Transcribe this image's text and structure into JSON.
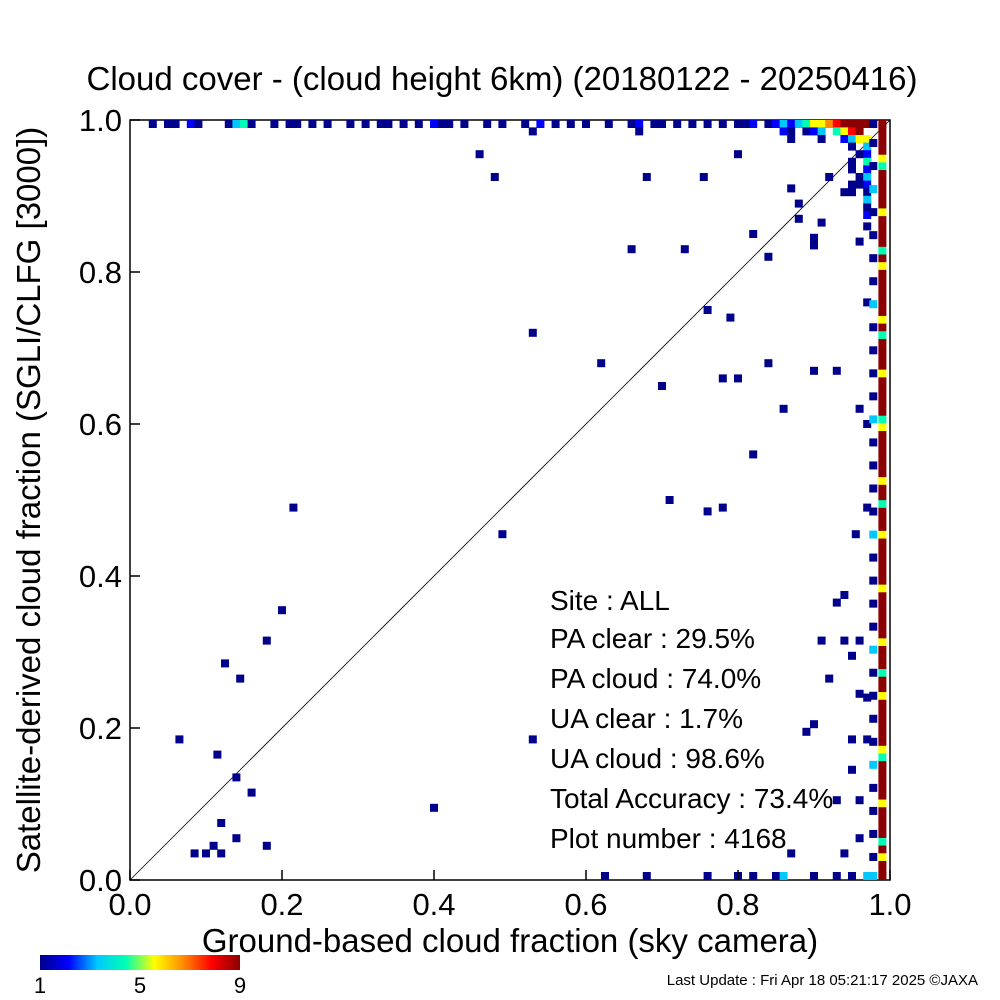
{
  "chart_data": {
    "type": "heatmap",
    "title": "Cloud cover - (cloud height 6km)  (20180122 - 20250416)",
    "xlabel": "Ground-based cloud fraction (sky camera)",
    "ylabel": "Satellite-derived cloud fraction (SGLI/CLFG [3000])",
    "xlim": [
      0,
      1
    ],
    "ylim": [
      0,
      1
    ],
    "x_ticks": [
      "0.0",
      "0.2",
      "0.4",
      "0.6",
      "0.8",
      "1.0"
    ],
    "y_ticks": [
      "0.0",
      "0.2",
      "0.4",
      "0.6",
      "0.8",
      "1.0"
    ],
    "grid": false,
    "reference_line": "1:1",
    "colorbar": {
      "min": 1,
      "max": 9,
      "ticks": [
        "1",
        "5",
        "9"
      ],
      "colors": [
        "#00008b",
        "#0000ff",
        "#00c8ff",
        "#00ffb4",
        "#ffff00",
        "#ff8c00",
        "#ff0000",
        "#8b0000"
      ]
    },
    "stats": {
      "site": "Site : ALL",
      "pa_clear": "PA clear :  29.5%",
      "pa_cloud": "PA cloud :  74.0%",
      "ua_clear": "UA clear :   1.7%",
      "ua_cloud": "UA cloud :  98.6%",
      "total_accuracy": "Total Accuracy :  73.4%",
      "plot_number": "Plot number :     4168"
    },
    "points": [
      [
        0.065,
        0.185,
        1
      ],
      [
        0.085,
        0.035,
        1
      ],
      [
        0.1,
        0.035,
        1
      ],
      [
        0.11,
        0.045,
        1
      ],
      [
        0.12,
        0.035,
        1
      ],
      [
        0.12,
        0.075,
        1
      ],
      [
        0.14,
        0.055,
        1
      ],
      [
        0.115,
        0.165,
        1
      ],
      [
        0.14,
        0.135,
        1
      ],
      [
        0.16,
        0.115,
        1
      ],
      [
        0.18,
        0.045,
        1
      ],
      [
        0.125,
        0.285,
        1
      ],
      [
        0.145,
        0.265,
        1
      ],
      [
        0.18,
        0.315,
        1
      ],
      [
        0.2,
        0.355,
        1
      ],
      [
        0.215,
        0.49,
        1
      ],
      [
        0.4,
        0.095,
        1
      ],
      [
        0.46,
        0.955,
        1
      ],
      [
        0.48,
        0.925,
        1
      ],
      [
        0.49,
        0.455,
        1
      ],
      [
        0.53,
        0.185,
        1
      ],
      [
        0.53,
        0.72,
        1
      ],
      [
        0.62,
        0.68,
        1
      ],
      [
        0.66,
        0.83,
        1
      ],
      [
        0.68,
        0.925,
        1
      ],
      [
        0.7,
        0.65,
        1
      ],
      [
        0.71,
        0.5,
        1
      ],
      [
        0.73,
        0.83,
        1
      ],
      [
        0.755,
        0.925,
        1
      ],
      [
        0.76,
        0.75,
        1
      ],
      [
        0.76,
        0.485,
        1
      ],
      [
        0.78,
        0.49,
        1
      ],
      [
        0.78,
        0.66,
        1
      ],
      [
        0.79,
        0.74,
        1
      ],
      [
        0.8,
        0.955,
        1
      ],
      [
        0.8,
        0.66,
        1
      ],
      [
        0.82,
        0.56,
        1
      ],
      [
        0.82,
        0.85,
        1
      ],
      [
        0.84,
        0.82,
        1
      ],
      [
        0.84,
        0.68,
        1
      ],
      [
        0.86,
        0.62,
        1
      ],
      [
        0.87,
        0.91,
        1
      ],
      [
        0.88,
        0.89,
        1
      ],
      [
        0.88,
        0.87,
        1
      ],
      [
        0.89,
        0.195,
        1
      ],
      [
        0.9,
        0.205,
        1
      ],
      [
        0.9,
        0.67,
        1
      ],
      [
        0.9,
        0.835,
        1
      ],
      [
        0.9,
        0.845,
        1
      ],
      [
        0.91,
        0.865,
        1
      ],
      [
        0.92,
        0.925,
        1
      ],
      [
        0.92,
        0.265,
        1
      ],
      [
        0.93,
        0.365,
        1
      ],
      [
        0.93,
        0.67,
        1
      ],
      [
        0.94,
        0.375,
        1
      ],
      [
        0.95,
        0.295,
        1
      ],
      [
        0.955,
        0.455,
        1
      ],
      [
        0.96,
        0.62,
        1
      ],
      [
        0.96,
        0.84,
        1
      ],
      [
        0.97,
        0.24,
        1
      ],
      [
        0.97,
        0.49,
        1
      ],
      [
        0.97,
        0.6,
        1
      ],
      [
        0.97,
        0.76,
        1
      ],
      [
        0.87,
        0.035,
        1
      ],
      [
        0.85,
        0.0,
        1
      ],
      [
        0.86,
        0.0,
        3
      ],
      [
        0.9,
        0.0,
        1
      ],
      [
        0.93,
        0.0,
        1
      ],
      [
        0.95,
        0.0,
        1
      ],
      [
        0.97,
        0.0,
        3
      ],
      [
        0.94,
        0.035,
        1
      ],
      [
        0.96,
        0.055,
        1
      ],
      [
        0.93,
        0.105,
        1
      ],
      [
        0.96,
        0.105,
        1
      ],
      [
        0.95,
        0.145,
        1
      ],
      [
        0.95,
        0.185,
        1
      ],
      [
        0.97,
        0.185,
        1
      ],
      [
        0.96,
        0.245,
        1
      ],
      [
        0.94,
        0.315,
        1
      ],
      [
        0.96,
        0.315,
        1
      ],
      [
        0.91,
        0.315,
        1
      ],
      [
        0.625,
        0.0,
        1
      ],
      [
        0.68,
        0.0,
        1
      ],
      [
        0.76,
        0.0,
        1
      ],
      [
        0.8,
        0.0,
        1
      ],
      [
        0.82,
        0.0,
        1
      ],
      [
        0.03,
        1.0,
        1
      ],
      [
        0.05,
        1.0,
        1
      ],
      [
        0.06,
        1.0,
        1
      ],
      [
        0.08,
        1.0,
        2
      ],
      [
        0.09,
        1.0,
        1
      ],
      [
        0.13,
        1.0,
        1
      ],
      [
        0.14,
        1.0,
        3
      ],
      [
        0.15,
        1.0,
        4
      ],
      [
        0.16,
        1.0,
        1
      ],
      [
        0.19,
        1.0,
        1
      ],
      [
        0.21,
        1.0,
        1
      ],
      [
        0.22,
        1.0,
        1
      ],
      [
        0.24,
        1.0,
        1
      ],
      [
        0.26,
        1.0,
        1
      ],
      [
        0.29,
        1.0,
        1
      ],
      [
        0.31,
        1.0,
        1
      ],
      [
        0.33,
        1.0,
        1
      ],
      [
        0.34,
        1.0,
        1
      ],
      [
        0.36,
        1.0,
        1
      ],
      [
        0.38,
        1.0,
        1
      ],
      [
        0.4,
        1.0,
        2
      ],
      [
        0.41,
        1.0,
        1
      ],
      [
        0.42,
        1.0,
        1
      ],
      [
        0.44,
        1.0,
        1
      ],
      [
        0.47,
        1.0,
        1
      ],
      [
        0.49,
        1.0,
        1
      ],
      [
        0.52,
        1.0,
        1
      ],
      [
        0.54,
        1.0,
        2
      ],
      [
        0.56,
        1.0,
        1
      ],
      [
        0.58,
        1.0,
        1
      ],
      [
        0.6,
        1.0,
        1
      ],
      [
        0.63,
        1.0,
        1
      ],
      [
        0.66,
        1.0,
        1
      ],
      [
        0.67,
        1.0,
        2
      ],
      [
        0.69,
        1.0,
        1
      ],
      [
        0.7,
        1.0,
        1
      ],
      [
        0.72,
        1.0,
        1
      ],
      [
        0.74,
        1.0,
        1
      ],
      [
        0.76,
        1.0,
        1
      ],
      [
        0.78,
        1.0,
        1
      ],
      [
        0.8,
        1.0,
        1
      ],
      [
        0.81,
        1.0,
        1
      ],
      [
        0.82,
        1.0,
        2
      ],
      [
        0.84,
        1.0,
        1
      ],
      [
        0.85,
        1.0,
        2
      ],
      [
        0.86,
        1.0,
        3
      ],
      [
        0.87,
        1.0,
        2
      ],
      [
        0.88,
        1.0,
        3
      ],
      [
        0.89,
        1.0,
        4
      ],
      [
        0.9,
        1.0,
        5
      ],
      [
        0.91,
        1.0,
        6
      ],
      [
        0.92,
        1.0,
        7
      ],
      [
        0.93,
        1.0,
        8
      ],
      [
        0.94,
        1.0,
        9
      ],
      [
        0.95,
        1.0,
        9
      ],
      [
        0.96,
        1.0,
        9
      ],
      [
        0.97,
        1.0,
        9
      ],
      [
        0.53,
        0.985,
        1
      ],
      [
        0.67,
        0.985,
        1
      ],
      [
        0.86,
        0.985,
        2
      ],
      [
        0.87,
        0.985,
        1
      ],
      [
        0.89,
        0.985,
        1
      ],
      [
        0.9,
        0.985,
        2
      ],
      [
        0.91,
        0.985,
        3
      ],
      [
        0.93,
        0.985,
        4
      ],
      [
        0.94,
        0.985,
        6
      ],
      [
        0.95,
        0.985,
        8
      ],
      [
        0.96,
        0.985,
        9
      ],
      [
        0.87,
        0.975,
        1
      ],
      [
        0.91,
        0.975,
        1
      ],
      [
        0.94,
        0.975,
        2
      ],
      [
        0.95,
        0.975,
        3
      ],
      [
        0.96,
        0.975,
        5
      ],
      [
        0.97,
        0.975,
        6
      ],
      [
        0.95,
        0.965,
        1
      ],
      [
        0.97,
        0.965,
        3
      ],
      [
        0.96,
        0.955,
        1
      ],
      [
        0.97,
        0.955,
        2
      ],
      [
        0.95,
        0.945,
        1
      ],
      [
        0.97,
        0.945,
        4
      ],
      [
        0.95,
        0.935,
        1
      ],
      [
        0.97,
        0.935,
        2
      ],
      [
        0.96,
        0.925,
        1
      ],
      [
        0.97,
        0.925,
        3
      ],
      [
        0.95,
        0.915,
        1
      ],
      [
        0.96,
        0.915,
        1
      ],
      [
        0.97,
        0.915,
        2
      ],
      [
        0.94,
        0.905,
        1
      ],
      [
        0.95,
        0.905,
        1
      ],
      [
        0.97,
        0.905,
        1
      ],
      [
        0.97,
        0.895,
        3
      ],
      [
        0.97,
        0.885,
        1
      ],
      [
        0.97,
        0.875,
        2
      ],
      [
        0.97,
        0.86,
        1
      ]
    ],
    "right_column_x": 0.99
  },
  "footer": {
    "last_update": "Last Update : Fri Apr 18 05:21:17 2025  ©JAXA"
  }
}
